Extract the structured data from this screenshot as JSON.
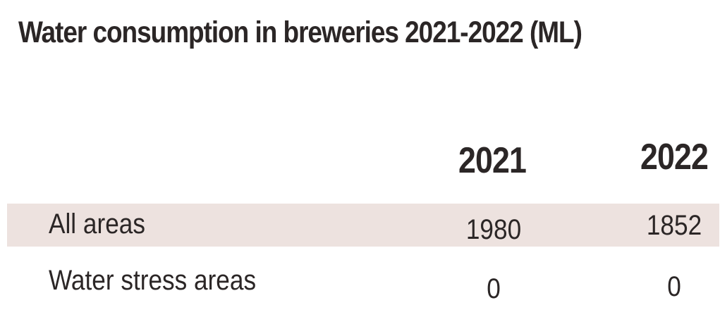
{
  "chart_data": {
    "type": "table",
    "title": "Water consumption in breweries 2021-2022 (ML)",
    "columns": [
      "2021",
      "2022"
    ],
    "rows": [
      {
        "label": "All areas",
        "values": [
          "1980",
          "1852"
        ],
        "highlighted": true
      },
      {
        "label": "Water stress areas",
        "values": [
          "0",
          "0"
        ],
        "highlighted": false
      }
    ],
    "colors": {
      "text": "#2b2626",
      "highlight_row": "#ede2df",
      "background": "#ffffff"
    }
  }
}
